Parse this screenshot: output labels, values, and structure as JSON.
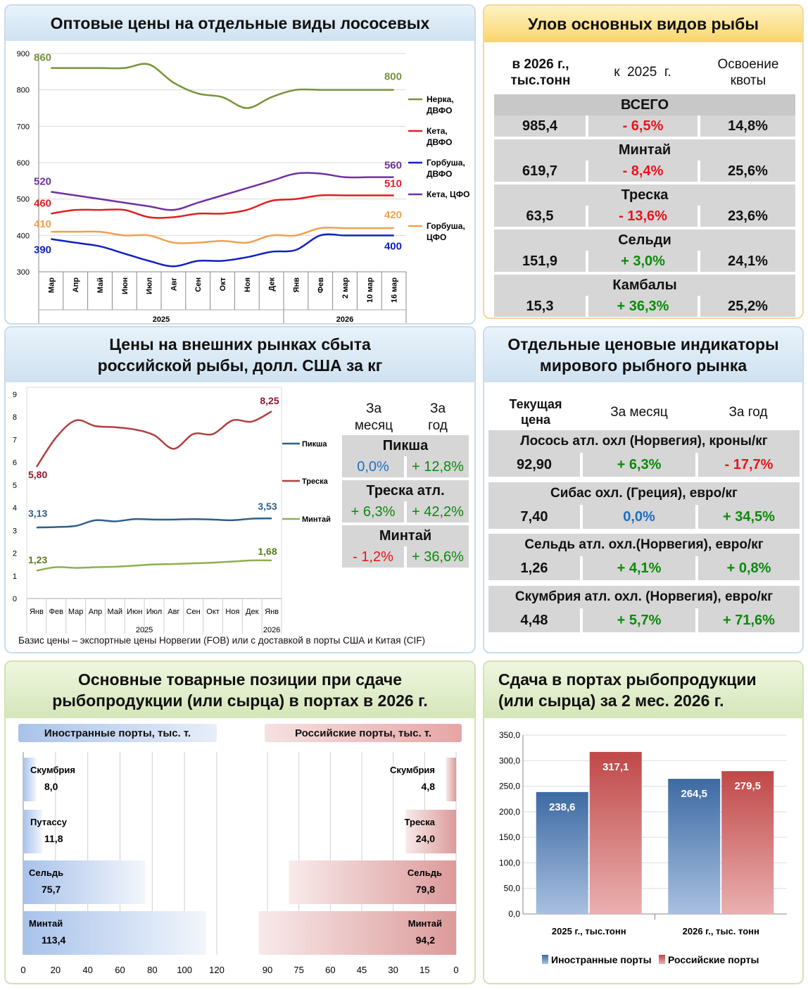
{
  "salmon": {
    "title": "Оптовые цены на отдельные виды лососевых",
    "yticks": [
      900,
      800,
      700,
      600,
      500,
      400,
      300
    ],
    "months": [
      "Мар",
      "Апр",
      "Май",
      "Июн",
      "Июл",
      "Авг",
      "Сен",
      "Окт",
      "Ноя",
      "Дек",
      "Янв",
      "Фев",
      "2 мар",
      "10 мар",
      "16 мар"
    ],
    "years": [
      "2025",
      "2026"
    ],
    "legend": [
      "Нерка, ДВФО",
      "Кета, ДВФО",
      "Горбуша, ДВФО",
      "Кета, ЦФО",
      "Горбуша, ЦФО"
    ],
    "colors": [
      "#77933c",
      "#e02020",
      "#1020c0",
      "#7030a0",
      "#f0a050"
    ],
    "start_labels": [
      "860",
      "460",
      "390",
      "520",
      "410"
    ],
    "end_labels": [
      "800",
      "510",
      "400",
      "560",
      "420"
    ]
  },
  "chart_data": [
    {
      "type": "line",
      "title": "Оптовые цены на отдельные виды лососевых",
      "categories": [
        "Мар",
        "Апр",
        "Май",
        "Июн",
        "Июл",
        "Авг",
        "Сен",
        "Окт",
        "Ноя",
        "Дек",
        "Янв",
        "Фев",
        "2 мар",
        "10 мар",
        "16 мар"
      ],
      "ylim": [
        300,
        900
      ],
      "series": [
        {
          "name": "Нерка, ДВФО",
          "values": [
            860,
            860,
            860,
            860,
            870,
            820,
            790,
            780,
            750,
            780,
            800,
            800,
            800,
            800,
            800
          ]
        },
        {
          "name": "Кета, ДВФО",
          "values": [
            460,
            470,
            470,
            470,
            450,
            450,
            460,
            460,
            470,
            495,
            500,
            510,
            510,
            510,
            510
          ]
        },
        {
          "name": "Горбуша, ДВФО",
          "values": [
            390,
            380,
            370,
            350,
            330,
            315,
            330,
            330,
            340,
            355,
            360,
            400,
            400,
            400,
            400
          ]
        },
        {
          "name": "Кета, ЦФО",
          "values": [
            520,
            510,
            500,
            490,
            480,
            470,
            490,
            510,
            530,
            550,
            570,
            570,
            560,
            560,
            560
          ]
        },
        {
          "name": "Горбуша, ЦФО",
          "values": [
            410,
            410,
            410,
            400,
            400,
            380,
            380,
            385,
            380,
            400,
            400,
            420,
            420,
            420,
            420
          ]
        }
      ]
    },
    {
      "type": "line",
      "title": "Цены на внешних рынках сбыта российской рыбы, долл. США за кг",
      "categories": [
        "Янв",
        "Фев",
        "Мар",
        "Апр",
        "Май",
        "Июн",
        "Июл",
        "Авг",
        "Сен",
        "Окт",
        "Ноя",
        "Дек",
        "Янв"
      ],
      "ylim": [
        0,
        9
      ],
      "series": [
        {
          "name": "Пикша",
          "values": [
            3.13,
            3.15,
            3.2,
            3.45,
            3.4,
            3.5,
            3.48,
            3.48,
            3.5,
            3.48,
            3.45,
            3.52,
            3.53
          ]
        },
        {
          "name": "Треска",
          "values": [
            5.8,
            7.1,
            7.85,
            7.6,
            7.55,
            7.45,
            7.2,
            6.6,
            7.25,
            7.25,
            7.85,
            7.8,
            8.25
          ]
        },
        {
          "name": "Минтай",
          "values": [
            1.23,
            1.38,
            1.35,
            1.38,
            1.4,
            1.45,
            1.5,
            1.52,
            1.55,
            1.58,
            1.63,
            1.68,
            1.68
          ]
        }
      ]
    },
    {
      "type": "bar",
      "title": "Иностранные порты, тыс. т.",
      "categories": [
        "Скумбрия",
        "Путассу",
        "Сельдь",
        "Минтай"
      ],
      "values": [
        8.0,
        11.8,
        75.7,
        113.4
      ],
      "xlim": [
        0,
        120
      ]
    },
    {
      "type": "bar",
      "title": "Российские порты, тыс. т.",
      "categories": [
        "Скумбрия",
        "Треска",
        "Сельдь",
        "Минтай"
      ],
      "values": [
        4.8,
        24.0,
        79.8,
        94.2
      ],
      "xlim": [
        0,
        90
      ]
    },
    {
      "type": "bar",
      "title": "Сдача в портах рыбопродукции (или сырца) за 2 мес. 2026 г.",
      "categories": [
        "2025 г., тыс.тонн",
        "2026 г., тыс. тонн"
      ],
      "series": [
        {
          "name": "Иностранные порты",
          "values": [
            238.6,
            264.5
          ]
        },
        {
          "name": "Российские порты",
          "values": [
            317.1,
            279.5
          ]
        }
      ],
      "ylim": [
        0,
        350
      ]
    }
  ],
  "catch": {
    "title": "Улов основных видов рыбы",
    "col1": "в 2026 г.,\nтыс.тонн",
    "col2": "к  2025  г.",
    "col3": "Освоение\nквоты",
    "rows": [
      {
        "name": "ВСЕГО",
        "v": "985,4",
        "d": "- 6,5%",
        "q": "14,8%"
      },
      {
        "name": "Минтай",
        "v": "619,7",
        "d": "- 8,4%",
        "q": "25,6%"
      },
      {
        "name": "Треска",
        "v": "63,5",
        "d": "- 13,6%",
        "q": "23,6%"
      },
      {
        "name": "Сельди",
        "v": "151,9",
        "d": "+ 3,0%",
        "q": "24,1%"
      },
      {
        "name": "Камбалы",
        "v": "15,3",
        "d": "+ 36,3%",
        "q": "25,2%"
      }
    ]
  },
  "export": {
    "title": "Цены на внешних рынках сбыта российской рыбы, долл. США за кг",
    "yticks": [
      "9",
      "8",
      "7",
      "6",
      "5",
      "4",
      "3",
      "2",
      "1",
      "0"
    ],
    "months": [
      "Янв",
      "Фев",
      "Мар",
      "Апр",
      "Май",
      "Июн",
      "Июл",
      "Авг",
      "Сен",
      "Окт",
      "Ноя",
      "Дек",
      "Янв"
    ],
    "years": [
      "2025",
      "2026"
    ],
    "legend": [
      "Пикша",
      "Треска",
      "Минтай"
    ],
    "labels": [
      "3,13",
      "3,53",
      "5,80",
      "8,25",
      "1,23",
      "1,68"
    ],
    "col1": "За\nмесяц",
    "col2": "За\nгод",
    "rows": [
      {
        "name": "Пикша",
        "m": "0,0%",
        "y": "+ 12,8%"
      },
      {
        "name": "Треска атл.",
        "m": "+ 6,3%",
        "y": "+ 42,2%"
      },
      {
        "name": "Минтай",
        "m": "- 1,2%",
        "y": "+ 36,6%"
      }
    ],
    "note": "Базис цены – экспортные цены Норвегии (FOB) или с доставкой в порты США и Китая (CIF)"
  },
  "indicators": {
    "title": "Отдельные ценовые индикаторы мирового рыбного рынка",
    "col1": "Текущая\nцена",
    "col2": "За месяц",
    "col3": "За год",
    "rows": [
      {
        "name": "Лосось атл. охл (Норвегия), кроны/кг",
        "p": "92,90",
        "m": "+ 6,3%",
        "y": "- 17,7%"
      },
      {
        "name": "Сибас охл. (Греция), евро/кг",
        "p": "7,40",
        "m": "0,0%",
        "y": "+ 34,5%"
      },
      {
        "name": "Сельдь атл. охл.(Норвегия), евро/кг",
        "p": "1,26",
        "m": "+ 4,1%",
        "y": "+ 0,8%"
      },
      {
        "name": "Скумбрия атл. охл. (Норвегия), евро/кг",
        "p": "4,48",
        "m": "+ 5,7%",
        "y": "+ 71,6%"
      }
    ]
  },
  "ports": {
    "title": "Основные товарные позиции при сдаче рыбопродукции (или сырца) в портах в 2026 г.",
    "foreign_title": "Иностранные порты, тыс. т.",
    "russian_title": "Российские порты, тыс. т.",
    "foreign_ticks": [
      "0",
      "20",
      "40",
      "60",
      "80",
      "100",
      "120"
    ],
    "russian_ticks": [
      "90",
      "75",
      "60",
      "45",
      "30",
      "15",
      "0"
    ],
    "foreign": [
      {
        "n": "Скумбрия",
        "v": "8,0"
      },
      {
        "n": "Путассу",
        "v": "11,8"
      },
      {
        "n": "Сельдь",
        "v": "75,7"
      },
      {
        "n": "Минтай",
        "v": "113,4"
      }
    ],
    "russian": [
      {
        "n": "Скумбрия",
        "v": "4,8"
      },
      {
        "n": "Треска",
        "v": "24,0"
      },
      {
        "n": "Сельдь",
        "v": "79,8"
      },
      {
        "n": "Минтай",
        "v": "94,2"
      }
    ]
  },
  "delivery": {
    "title": "Сдача в портах рыбопродукции (или сырца) за 2 мес. 2026 г.",
    "yticks": [
      "350,0",
      "300,0",
      "250,0",
      "200,0",
      "150,0",
      "100,0",
      "50,0",
      "0,0"
    ],
    "cats": [
      "2025 г., тыс.тонн",
      "2026 г., тыс. тонн"
    ],
    "labels": [
      "238,6",
      "317,1",
      "264,5",
      "279,5"
    ],
    "legend": [
      "Иностранные порты",
      "Российские порты"
    ]
  }
}
